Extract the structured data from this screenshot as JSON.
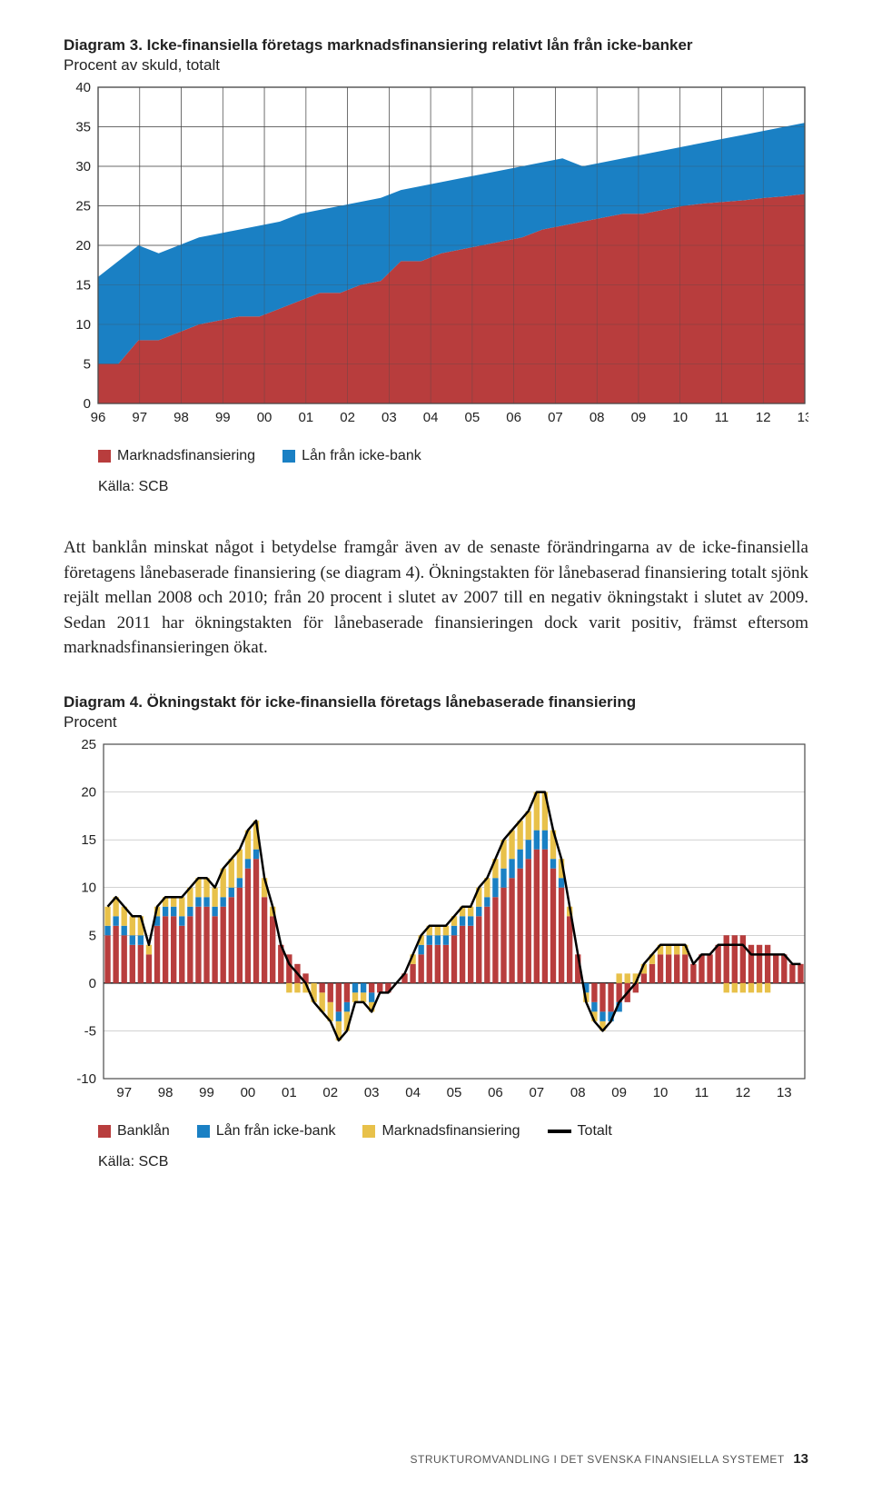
{
  "chart3": {
    "title_prefix": "Diagram 3.",
    "title_rest": " Icke-finansiella företags marknadsfinansiering relativt lån från icke-banker",
    "subtitle": "Procent av skuld, totalt",
    "type": "stacked-area",
    "ylim": [
      0,
      40
    ],
    "ytick_step": 5,
    "yticks": [
      "0",
      "5",
      "10",
      "15",
      "20",
      "25",
      "30",
      "35",
      "40"
    ],
    "xlabels": [
      "96",
      "97",
      "98",
      "99",
      "00",
      "01",
      "02",
      "03",
      "04",
      "05",
      "06",
      "07",
      "08",
      "09",
      "10",
      "11",
      "12",
      "13"
    ],
    "background_color": "#ffffff",
    "grid_color": "#4a4a4a",
    "series": [
      {
        "name": "Marknadsfinansiering",
        "color": "#b83d3d",
        "values": [
          5,
          5,
          8,
          8,
          9,
          10,
          10.5,
          11,
          11,
          12,
          13,
          14,
          14,
          15,
          15.5,
          18,
          18,
          19,
          19.5,
          20,
          20.5,
          21,
          22,
          22.5,
          23,
          23.5,
          24,
          24,
          24.5,
          25,
          25.3,
          25.5,
          25.7,
          26,
          26.2,
          26.5
        ]
      },
      {
        "name": "Lån från icke-bank",
        "color": "#1a80c4",
        "values": [
          16,
          18,
          20,
          19,
          20,
          21,
          21.5,
          22,
          22.5,
          23,
          24,
          24.5,
          25,
          25.5,
          26,
          27,
          27.5,
          28,
          28.5,
          29,
          29.5,
          30,
          30.5,
          31,
          30,
          30.5,
          31,
          31.5,
          32,
          32.5,
          33,
          33.5,
          34,
          34.5,
          35,
          35.5
        ]
      }
    ],
    "legend": [
      {
        "label": "Marknadsfinansiering",
        "color": "#b83d3d"
      },
      {
        "label": "Lån från icke-bank",
        "color": "#1a80c4"
      }
    ],
    "source": "Källa: SCB"
  },
  "body_text": "Att banklån minskat något i betydelse framgår även av de senaste förändringarna av de icke-finansiella företagens lånebaserade finansiering (se diagram 4). Ökningstakten för lånebaserad finansiering totalt sjönk rejält mellan 2008 och 2010; från 20 procent i slutet av 2007 till en negativ ökningstakt i slutet av 2009. Sedan 2011 har ökningstakten för lånebaserade finansieringen dock varit positiv, främst eftersom marknadsfinansieringen ökat.",
  "chart4": {
    "title_prefix": "Diagram 4.",
    "title_rest": " Ökningstakt för icke-finansiella företags lånebaserade finansiering",
    "subtitle": "Procent",
    "type": "stacked-bar-with-line",
    "ylim": [
      -10,
      25
    ],
    "ytick_step": 5,
    "yticks": [
      "-10",
      "-5",
      "0",
      "5",
      "10",
      "15",
      "20",
      "25"
    ],
    "xlabels": [
      "97",
      "98",
      "99",
      "00",
      "01",
      "02",
      "03",
      "04",
      "05",
      "06",
      "07",
      "08",
      "09",
      "10",
      "11",
      "12",
      "13"
    ],
    "background_color": "#ffffff",
    "grid_color": "#4a4a4a",
    "bar_width": 0.7,
    "colors": {
      "banklan": "#b83d3d",
      "ickebank": "#1a80c4",
      "marknads": "#e8c14a",
      "line": "#000000"
    },
    "series": {
      "banklan": [
        5,
        6,
        5,
        4,
        4,
        3,
        6,
        7,
        7,
        6,
        7,
        8,
        8,
        7,
        8,
        9,
        10,
        12,
        13,
        9,
        7,
        4,
        3,
        2,
        1,
        0,
        -1,
        -2,
        -3,
        -2,
        0,
        0,
        -1,
        -1,
        -1,
        0,
        1,
        2,
        3,
        4,
        4,
        4,
        5,
        6,
        6,
        7,
        8,
        9,
        10,
        11,
        12,
        13,
        14,
        14,
        12,
        10,
        7,
        3,
        0,
        -2,
        -3,
        -3,
        -2,
        -2,
        -1,
        1,
        2,
        3,
        3,
        3,
        3,
        2,
        3,
        3,
        4,
        5,
        5,
        5,
        4,
        4,
        4,
        3,
        3,
        2,
        2
      ],
      "ickebank": [
        1,
        1,
        1,
        1,
        1,
        0,
        1,
        1,
        1,
        1,
        1,
        1,
        1,
        1,
        1,
        1,
        1,
        1,
        1,
        0,
        0,
        0,
        0,
        0,
        0,
        0,
        0,
        0,
        -1,
        -1,
        -1,
        -1,
        -1,
        0,
        0,
        0,
        0,
        0,
        1,
        1,
        1,
        1,
        1,
        1,
        1,
        1,
        1,
        2,
        2,
        2,
        2,
        2,
        2,
        2,
        1,
        1,
        0,
        0,
        -1,
        -1,
        -1,
        -1,
        -1,
        0,
        0,
        0,
        0,
        0,
        0,
        0,
        0,
        0,
        0,
        0,
        0,
        0,
        0,
        0,
        0,
        0,
        0,
        0,
        0,
        0,
        0
      ],
      "marknads": [
        2,
        2,
        2,
        2,
        2,
        1,
        1,
        1,
        1,
        2,
        2,
        2,
        2,
        2,
        3,
        3,
        3,
        3,
        3,
        2,
        1,
        0,
        -1,
        -1,
        -1,
        -2,
        -2,
        -2,
        -2,
        -2,
        -1,
        -1,
        -1,
        0,
        0,
        0,
        0,
        1,
        1,
        1,
        1,
        1,
        1,
        1,
        1,
        2,
        2,
        2,
        3,
        3,
        3,
        3,
        4,
        4,
        3,
        2,
        1,
        0,
        -1,
        -1,
        -1,
        0,
        1,
        1,
        1,
        1,
        1,
        1,
        1,
        1,
        1,
        0,
        0,
        0,
        0,
        -1,
        -1,
        -1,
        -1,
        -1,
        -1,
        0,
        0,
        0,
        0
      ],
      "totalt": [
        8,
        9,
        8,
        7,
        7,
        4,
        8,
        9,
        9,
        9,
        10,
        11,
        11,
        10,
        12,
        13,
        14,
        16,
        17,
        11,
        8,
        4,
        2,
        1,
        0,
        -2,
        -3,
        -4,
        -6,
        -5,
        -2,
        -2,
        -3,
        -1,
        -1,
        0,
        1,
        3,
        5,
        6,
        6,
        6,
        7,
        8,
        8,
        10,
        11,
        13,
        15,
        16,
        17,
        18,
        20,
        20,
        16,
        13,
        8,
        3,
        -2,
        -4,
        -5,
        -4,
        -2,
        -1,
        0,
        2,
        3,
        4,
        4,
        4,
        4,
        2,
        3,
        3,
        4,
        4,
        4,
        4,
        3,
        3,
        3,
        3,
        3,
        2,
        2
      ]
    },
    "legend": [
      {
        "label": "Banklån",
        "color": "#b83d3d",
        "type": "sq"
      },
      {
        "label": "Lån från icke-bank",
        "color": "#1a80c4",
        "type": "sq"
      },
      {
        "label": "Marknadsfinansiering",
        "color": "#e8c14a",
        "type": "sq"
      },
      {
        "label": "Totalt",
        "color": "#000000",
        "type": "line"
      }
    ],
    "source": "Källa: SCB"
  },
  "footer": {
    "text": "STRUKTUROMVANDLING I DET SVENSKA FINANSIELLA SYSTEMET",
    "page": "13"
  }
}
